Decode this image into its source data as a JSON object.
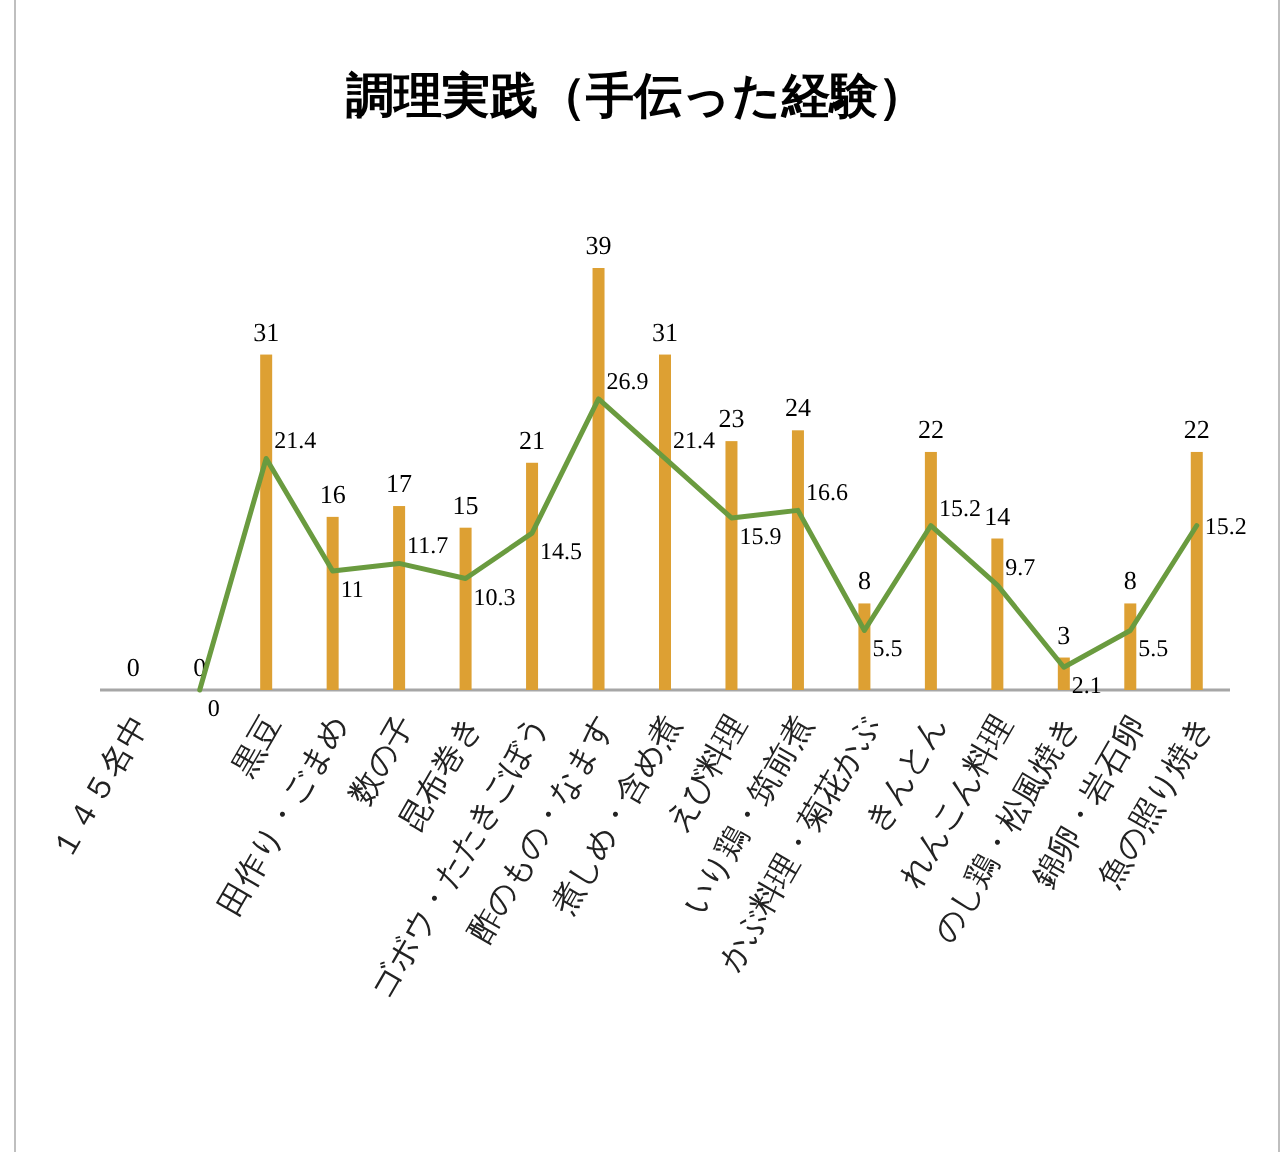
{
  "chart_data": {
    "type": "bar",
    "title": "調理実践（手伝った経験）",
    "categories": [
      "１４５名中",
      null,
      "黒豆",
      "田作り・ごまめ",
      "数の子",
      "昆布巻き",
      "ゴボウ・たたきごぼう",
      "酢のもの・なます",
      "煮しめ・含め煮",
      "えび料理",
      "いり鶏・筑前煮",
      "かぶ料理・菊花かぶ",
      "きんとん",
      "れんこん料理",
      "のし鶏・松風焼き",
      "錦卵・岩石卵",
      "魚の照り焼き"
    ],
    "series": [
      {
        "color": "#dda033",
        "values": [
          0,
          0,
          31,
          16,
          17,
          15,
          21,
          39,
          31,
          23,
          24,
          8,
          22,
          14,
          3,
          8,
          22
        ]
      },
      {
        "type": "line",
        "color": "#6a9b3f",
        "values": [
          null,
          0,
          21.4,
          11,
          11.7,
          10.3,
          14.5,
          26.9,
          21.4,
          15.9,
          16.6,
          5.5,
          15.2,
          9.7,
          2.1,
          5.5,
          15.2
        ]
      }
    ],
    "data_labels": true
  }
}
